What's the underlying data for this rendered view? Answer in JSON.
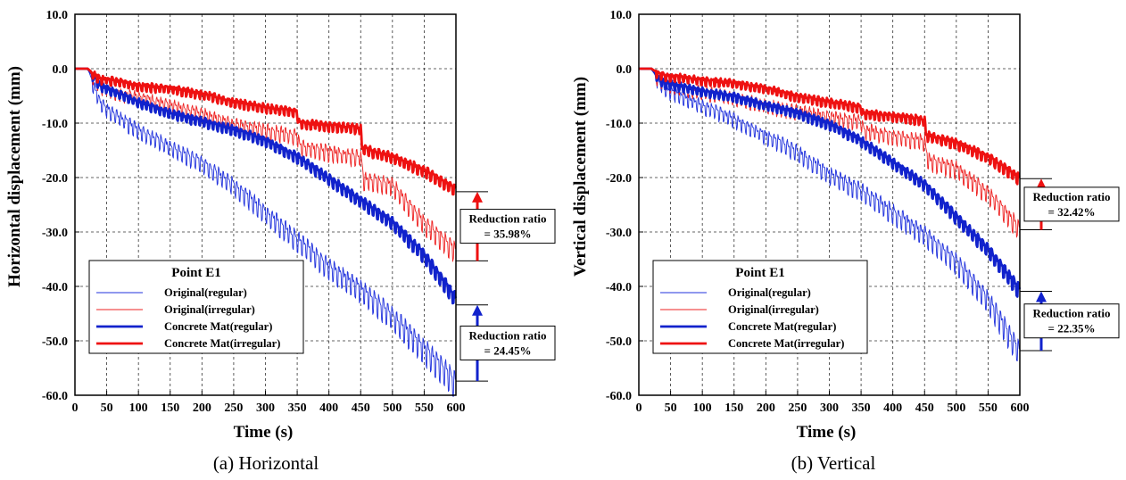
{
  "chart_data": [
    {
      "type": "line",
      "panel": "horizontal",
      "caption": "(a) Horizontal",
      "xlabel": "Time (s)",
      "ylabel": "Horizontal displacement (mm)",
      "xlim": [
        0,
        600
      ],
      "ylim": [
        -60,
        10
      ],
      "x_ticks": [
        "0",
        "50",
        "100",
        "150",
        "200",
        "250",
        "300",
        "350",
        "400",
        "450",
        "500",
        "550",
        "600"
      ],
      "y_ticks": [
        "10.0",
        "0.0",
        "-10.0",
        "-20.0",
        "-30.0",
        "-40.0",
        "-50.0",
        "-60.0"
      ],
      "grid": true,
      "legend": {
        "title": "Point E1",
        "placement": "lower-left",
        "entries": [
          "Original(regular)",
          "Original(irregular)",
          "Concrete Mat(regular)",
          "Concrete Mat(irregular)"
        ]
      },
      "series": [
        {
          "name": "Original(regular)",
          "color": "#2233dd",
          "width": "thin",
          "x": [
            0,
            20,
            30,
            40,
            60,
            80,
            100,
            150,
            200,
            250,
            300,
            350,
            400,
            450,
            500,
            550,
            600
          ],
          "y": [
            0,
            0,
            -3,
            -6,
            -8,
            -9.5,
            -11,
            -14,
            -17,
            -21,
            -26,
            -31,
            -36,
            -40,
            -45,
            -51,
            -57
          ]
        },
        {
          "name": "Original(irregular)",
          "color": "#ee2222",
          "width": "thin",
          "x": [
            0,
            20,
            30,
            40,
            60,
            80,
            100,
            150,
            200,
            250,
            300,
            350,
            355,
            400,
            450,
            455,
            500,
            550,
            600
          ],
          "y": [
            0,
            0,
            -1.5,
            -3,
            -4,
            -4.5,
            -5,
            -6.5,
            -8,
            -10,
            -11,
            -12,
            -14,
            -15,
            -16,
            -20,
            -21,
            -28,
            -33
          ]
        },
        {
          "name": "Concrete Mat(regular)",
          "color": "#1122cc",
          "width": "thick",
          "x": [
            0,
            20,
            30,
            40,
            60,
            80,
            100,
            150,
            200,
            250,
            300,
            350,
            400,
            450,
            500,
            550,
            600
          ],
          "y": [
            0,
            0,
            -1.5,
            -3,
            -4,
            -5,
            -6,
            -8,
            -9.5,
            -11,
            -13,
            -16,
            -20,
            -24,
            -28,
            -34,
            -42
          ]
        },
        {
          "name": "Concrete Mat(irregular)",
          "color": "#ee1111",
          "width": "thick",
          "x": [
            0,
            20,
            30,
            40,
            60,
            80,
            100,
            150,
            200,
            250,
            300,
            350,
            352,
            400,
            450,
            452,
            500,
            550,
            600
          ],
          "y": [
            0,
            0,
            -1,
            -1.8,
            -2,
            -2.5,
            -3,
            -3.5,
            -4.5,
            -6,
            -7,
            -7.8,
            -9.8,
            -10.3,
            -10.8,
            -14.5,
            -16,
            -18.5,
            -22
          ]
        }
      ],
      "annotations": [
        {
          "label": "Reduction ratio",
          "value": "= 35.98%",
          "color": "#ee1111",
          "from": -35.3,
          "to": -22.6
        },
        {
          "label": "Reduction ratio",
          "value": "= 24.45%",
          "color": "#1122cc",
          "from": -57.4,
          "to": -43.4
        }
      ]
    },
    {
      "type": "line",
      "panel": "vertical",
      "caption": "(b) Vertical",
      "xlabel": "Time (s)",
      "ylabel": "Vertical displacement (mm)",
      "xlim": [
        0,
        600
      ],
      "ylim": [
        -60,
        10
      ],
      "x_ticks": [
        "0",
        "50",
        "100",
        "150",
        "200",
        "250",
        "300",
        "350",
        "400",
        "450",
        "500",
        "550",
        "600"
      ],
      "y_ticks": [
        "10.0",
        "0.0",
        "-10.0",
        "-20.0",
        "-30.0",
        "-40.0",
        "-50.0",
        "-60.0"
      ],
      "grid": true,
      "legend": {
        "title": "Point E1",
        "placement": "lower-left",
        "entries": [
          "Original(regular)",
          "Original(irregular)",
          "Concrete Mat(regular)",
          "Concrete Mat(irregular)"
        ]
      },
      "series": [
        {
          "name": "Original(regular)",
          "color": "#2233dd",
          "width": "thin",
          "x": [
            0,
            20,
            30,
            40,
            60,
            80,
            100,
            150,
            200,
            250,
            300,
            350,
            400,
            450,
            500,
            550,
            600
          ],
          "y": [
            0,
            0,
            -2,
            -3.5,
            -4.5,
            -5.5,
            -6.5,
            -9,
            -12,
            -15,
            -19,
            -22,
            -26,
            -30,
            -35,
            -42,
            -51.5
          ]
        },
        {
          "name": "Original(irregular)",
          "color": "#ee2222",
          "width": "thin",
          "x": [
            0,
            20,
            30,
            40,
            60,
            80,
            100,
            150,
            200,
            250,
            300,
            350,
            355,
            400,
            450,
            455,
            500,
            550,
            600
          ],
          "y": [
            0,
            0,
            -1.5,
            -2.5,
            -3,
            -3.5,
            -4,
            -5,
            -6.5,
            -7.5,
            -8.5,
            -9.5,
            -11,
            -12,
            -13,
            -16.5,
            -18,
            -22.5,
            -29
          ]
        },
        {
          "name": "Concrete Mat(regular)",
          "color": "#1122cc",
          "width": "thick",
          "x": [
            0,
            20,
            30,
            40,
            60,
            80,
            100,
            150,
            200,
            250,
            300,
            350,
            400,
            450,
            500,
            550,
            600
          ],
          "y": [
            0,
            0,
            -1.5,
            -2.5,
            -3,
            -3.5,
            -4,
            -5,
            -6.5,
            -8,
            -10,
            -13,
            -17,
            -21,
            -27,
            -33,
            -40.5
          ]
        },
        {
          "name": "Concrete Mat(irregular)",
          "color": "#ee1111",
          "width": "thick",
          "x": [
            0,
            20,
            30,
            40,
            60,
            80,
            100,
            150,
            200,
            250,
            300,
            350,
            352,
            400,
            450,
            452,
            500,
            550,
            600
          ],
          "y": [
            0,
            0,
            -0.8,
            -1.2,
            -1.4,
            -1.7,
            -2,
            -2.5,
            -3.5,
            -5,
            -6,
            -7,
            -8,
            -8.5,
            -9.3,
            -12,
            -13.5,
            -16,
            -20
          ]
        }
      ],
      "annotations": [
        {
          "label": "Reduction ratio",
          "value": "= 32.42%",
          "color": "#ee1111",
          "from": -29.6,
          "to": -20.2
        },
        {
          "label": "Reduction ratio",
          "value": "= 22.35%",
          "color": "#1122cc",
          "from": -51.8,
          "to": -40.9
        }
      ]
    }
  ]
}
